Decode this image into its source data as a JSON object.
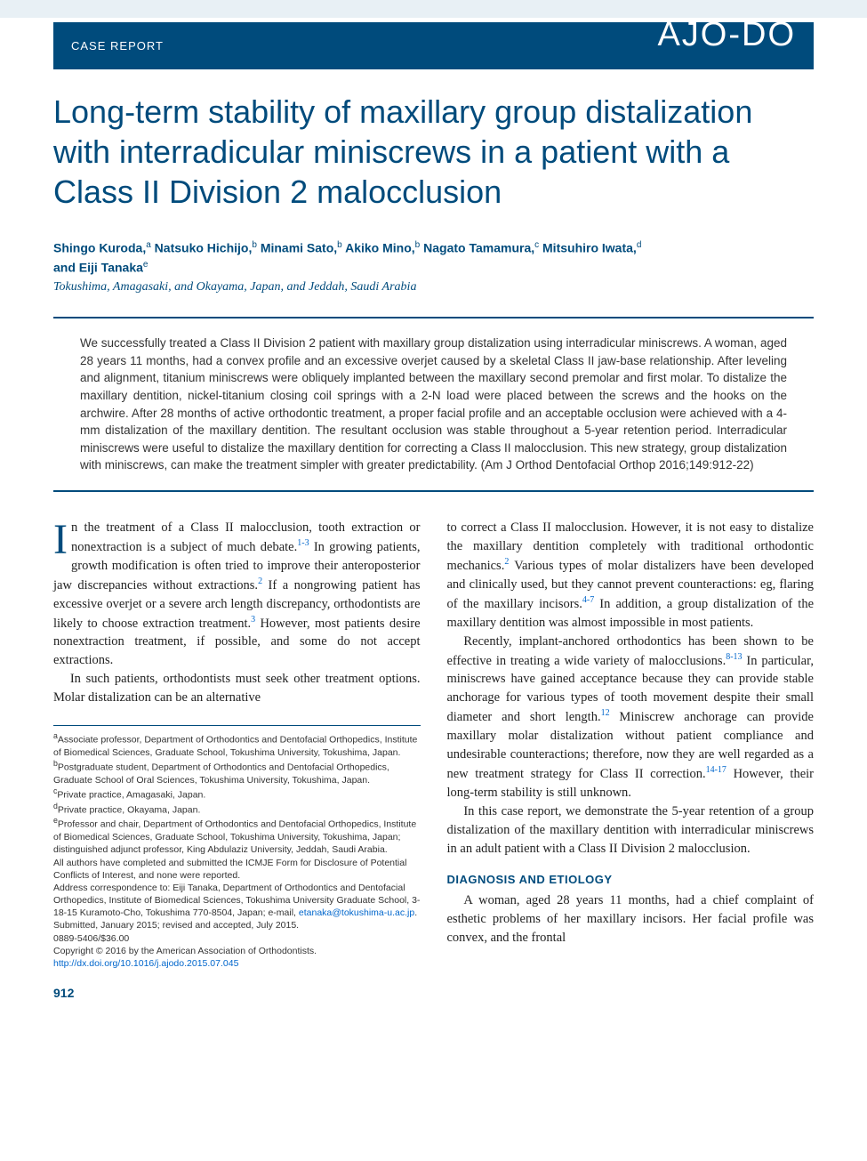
{
  "header": {
    "section_label": "CASE REPORT",
    "journal_logo": "AJO-DO"
  },
  "title": "Long-term stability of maxillary group distalization with interradicular miniscrews in a patient with a Class II Division 2 malocclusion",
  "authors_line1": "Shingo Kuroda,",
  "authors_sup1": "a",
  "authors_line2": " Natsuko Hichijo,",
  "authors_sup2": "b",
  "authors_line3": " Minami Sato,",
  "authors_sup3": "b",
  "authors_line4": " Akiko Mino,",
  "authors_sup4": "b",
  "authors_line5": " Nagato Tamamura,",
  "authors_sup5": "c",
  "authors_line6": " Mitsuhiro Iwata,",
  "authors_sup6": "d",
  "authors_and": "and Eiji Tanaka",
  "authors_sup7": "e",
  "affil_summary": "Tokushima, Amagasaki, and Okayama, Japan, and Jeddah, Saudi Arabia",
  "abstract": "We successfully treated a Class II Division 2 patient with maxillary group distalization using interradicular miniscrews. A woman, aged 28 years 11 months, had a convex profile and an excessive overjet caused by a skeletal Class II jaw-base relationship. After leveling and alignment, titanium miniscrews were obliquely implanted between the maxillary second premolar and first molar. To distalize the maxillary dentition, nickel-titanium closing coil springs with a 2-N load were placed between the screws and the hooks on the archwire. After 28 months of active orthodontic treatment, a proper facial profile and an acceptable occlusion were achieved with a 4-mm distalization of the maxillary dentition. The resultant occlusion was stable throughout a 5-year retention period. Interradicular miniscrews were useful to distalize the maxillary dentition for correcting a Class II malocclusion. This new strategy, group distalization with miniscrews, can make the treatment simpler with greater predictability. (Am J Orthod Dentofacial Orthop 2016;149:912-22)",
  "body": {
    "left": {
      "p1_start": "n the treatment of a Class II malocclusion, tooth extraction or nonextraction is a subject of much debate.",
      "p1_ref1": "1-3",
      "p1_cont": " In growing patients, growth modification is often tried to improve their anteroposterior jaw discrepancies without extractions.",
      "p1_ref2": "2",
      "p1_cont2": " If a nongrowing patient has excessive overjet or a severe arch length discrepancy, orthodontists are likely to choose extraction treatment.",
      "p1_ref3": "3",
      "p1_cont3": " However, most patients desire nonextraction treatment, if possible, and some do not accept extractions.",
      "p2": "In such patients, orthodontists must seek other treatment options. Molar distalization can be an alternative"
    },
    "right": {
      "p1_start": "to correct a Class II malocclusion. However, it is not easy to distalize the maxillary dentition completely with traditional orthodontic mechanics.",
      "p1_ref1": "2",
      "p1_cont": " Various types of molar distalizers have been developed and clinically used, but they cannot prevent counteractions: eg, flaring of the maxillary incisors.",
      "p1_ref2": "4-7",
      "p1_cont2": " In addition, a group distalization of the maxillary dentition was almost impossible in most patients.",
      "p2_start": "Recently, implant-anchored orthodontics has been shown to be effective in treating a wide variety of malocclusions.",
      "p2_ref1": "8-13",
      "p2_cont": " In particular, miniscrews have gained acceptance because they can provide stable anchorage for various types of tooth movement despite their small diameter and short length.",
      "p2_ref2": "12",
      "p2_cont2": " Miniscrew anchorage can provide maxillary molar distalization without patient compliance and undesirable counteractions; therefore, now they are well regarded as a new treatment strategy for Class II correction.",
      "p2_ref3": "14-17",
      "p2_cont3": " However, their long-term stability is still unknown.",
      "p3": "In this case report, we demonstrate the 5-year retention of a group distalization of the maxillary dentition with interradicular miniscrews in an adult patient with a Class II Division 2 malocclusion.",
      "section_heading": "DIAGNOSIS AND ETIOLOGY",
      "p4": "A woman, aged 28 years 11 months, had a chief complaint of esthetic problems of her maxillary incisors. Her facial profile was convex, and the frontal"
    }
  },
  "footnotes": {
    "a": "Associate professor, Department of Orthodontics and Dentofacial Orthopedics, Institute of Biomedical Sciences, Graduate School, Tokushima University, Tokushima, Japan.",
    "b": "Postgraduate student, Department of Orthodontics and Dentofacial Orthopedics, Graduate School of Oral Sciences, Tokushima University, Tokushima, Japan.",
    "c": "Private practice, Amagasaki, Japan.",
    "d": "Private practice, Okayama, Japan.",
    "e": "Professor and chair, Department of Orthodontics and Dentofacial Orthopedics, Institute of Biomedical Sciences, Graduate School, Tokushima University, Tokushima, Japan; distinguished adjunct professor, King Abdulaziz University, Jeddah, Saudi Arabia.",
    "disclosure": "All authors have completed and submitted the ICMJE Form for Disclosure of Potential Conflicts of Interest, and none were reported.",
    "correspondence": "Address correspondence to: Eiji Tanaka, Department of Orthodontics and Dentofacial Orthopedics, Institute of Biomedical Sciences, Tokushima University Graduate School, 3-18-15 Kuramoto-Cho, Tokushima 770-8504, Japan; e-mail, ",
    "email": "etanaka@tokushima-u.ac.jp",
    "email_suffix": ".",
    "submitted": "Submitted, January 2015; revised and accepted, July 2015.",
    "issn": "0889-5406/$36.00",
    "copyright": "Copyright © 2016 by the American Association of Orthodontists.",
    "doi": "http://dx.doi.org/10.1016/j.ajodo.2015.07.045"
  },
  "page_number": "912",
  "colors": {
    "brand": "#004b7c",
    "link": "#0066cc",
    "text": "#333333",
    "background": "#ffffff",
    "topbar": "#e8f0f5"
  }
}
